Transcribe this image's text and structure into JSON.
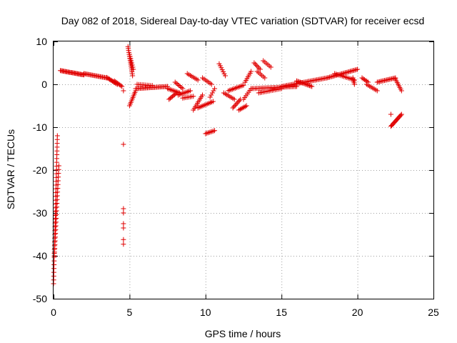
{
  "chart_data": {
    "type": "scatter",
    "title": "Day 082 of 2018, Sidereal Day-to-day VTEC variation (SDTVAR) for receiver ecsd",
    "xlabel": "GPS time / hours",
    "ylabel": "SDTVAR / TECUs",
    "xlim": [
      0,
      25
    ],
    "ylim": [
      -50,
      10
    ],
    "xticks": [
      0,
      5,
      10,
      15,
      20,
      25
    ],
    "yticks": [
      10,
      0,
      -10,
      -20,
      -30,
      -40,
      -50
    ],
    "xtick_labels": [
      "0",
      "5",
      "10",
      "15",
      "20",
      "25"
    ],
    "ytick_labels": [
      "10",
      "0",
      "-10",
      "-20",
      "-30",
      "-40",
      "-50"
    ],
    "grid": true,
    "marker": "+",
    "color": "#e00000",
    "series": [
      {
        "name": "SDTVAR",
        "segments": [
          {
            "x0": 0.0,
            "y0": -46.5,
            "x1": 0.25,
            "y1": -12.0,
            "n": 40
          },
          {
            "x0": 0.05,
            "y0": -40.0,
            "x1": 0.35,
            "y1": -19.0,
            "n": 25
          },
          {
            "x0": 0.45,
            "y0": 3.2,
            "x1": 2.0,
            "y1": 2.2,
            "n": 26
          },
          {
            "x0": 2.0,
            "y0": 2.5,
            "x1": 3.5,
            "y1": 1.5,
            "n": 22
          },
          {
            "x0": 3.5,
            "y0": 1.6,
            "x1": 4.2,
            "y1": 0.0,
            "n": 12
          },
          {
            "x0": 4.0,
            "y0": 0.8,
            "x1": 4.5,
            "y1": -0.5,
            "n": 8
          },
          {
            "x0": 4.9,
            "y0": 8.8,
            "x1": 5.2,
            "y1": 2.0,
            "n": 16
          },
          {
            "x0": 5.0,
            "y0": 7.0,
            "x1": 5.25,
            "y1": 3.5,
            "n": 8
          },
          {
            "x0": 5.0,
            "y0": -5.0,
            "x1": 5.4,
            "y1": -1.5,
            "n": 10
          },
          {
            "x0": 5.4,
            "y0": -1.0,
            "x1": 7.5,
            "y1": -0.5,
            "n": 28
          },
          {
            "x0": 5.5,
            "y0": 0.0,
            "x1": 6.5,
            "y1": -0.3,
            "n": 10
          },
          {
            "x0": 7.5,
            "y0": -1.0,
            "x1": 8.3,
            "y1": -2.0,
            "n": 10
          },
          {
            "x0": 7.6,
            "y0": -3.5,
            "x1": 8.1,
            "y1": -2.0,
            "n": 8
          },
          {
            "x0": 8.0,
            "y0": 0.5,
            "x1": 8.5,
            "y1": -1.0,
            "n": 7
          },
          {
            "x0": 8.2,
            "y0": -2.5,
            "x1": 9.0,
            "y1": -1.5,
            "n": 10
          },
          {
            "x0": 8.5,
            "y0": -3.2,
            "x1": 9.2,
            "y1": -2.8,
            "n": 8
          },
          {
            "x0": 8.8,
            "y0": 2.5,
            "x1": 9.5,
            "y1": 1.0,
            "n": 8
          },
          {
            "x0": 9.2,
            "y0": -6.0,
            "x1": 9.8,
            "y1": -2.5,
            "n": 10
          },
          {
            "x0": 9.5,
            "y0": -5.5,
            "x1": 10.5,
            "y1": -4.0,
            "n": 12
          },
          {
            "x0": 9.8,
            "y0": 1.5,
            "x1": 10.4,
            "y1": 0.0,
            "n": 7
          },
          {
            "x0": 10.0,
            "y0": -11.5,
            "x1": 10.6,
            "y1": -10.8,
            "n": 8
          },
          {
            "x0": 10.3,
            "y0": -3.0,
            "x1": 10.6,
            "y1": -1.0,
            "n": 5
          },
          {
            "x0": 10.9,
            "y0": 4.8,
            "x1": 11.3,
            "y1": 2.0,
            "n": 7
          },
          {
            "x0": 11.2,
            "y0": -2.0,
            "x1": 11.9,
            "y1": -3.5,
            "n": 8
          },
          {
            "x0": 11.5,
            "y0": -1.5,
            "x1": 12.5,
            "y1": -0.2,
            "n": 12
          },
          {
            "x0": 11.8,
            "y0": -5.5,
            "x1": 12.3,
            "y1": -3.5,
            "n": 8
          },
          {
            "x0": 12.2,
            "y0": -6.0,
            "x1": 12.7,
            "y1": -5.0,
            "n": 7
          },
          {
            "x0": 12.5,
            "y0": -3.5,
            "x1": 13.0,
            "y1": -1.0,
            "n": 7
          },
          {
            "x0": 12.6,
            "y0": 0.5,
            "x1": 13.0,
            "y1": 3.0,
            "n": 7
          },
          {
            "x0": 13.2,
            "y0": 5.0,
            "x1": 13.6,
            "y1": 3.5,
            "n": 6
          },
          {
            "x0": 13.4,
            "y0": 3.0,
            "x1": 13.9,
            "y1": 1.5,
            "n": 6
          },
          {
            "x0": 13.8,
            "y0": 5.5,
            "x1": 14.3,
            "y1": 4.0,
            "n": 6
          },
          {
            "x0": 13.0,
            "y0": -1.0,
            "x1": 16.0,
            "y1": -0.5,
            "n": 34
          },
          {
            "x0": 13.5,
            "y0": -2.0,
            "x1": 15.0,
            "y1": -1.0,
            "n": 16
          },
          {
            "x0": 15.0,
            "y0": -0.5,
            "x1": 18.0,
            "y1": 1.5,
            "n": 36
          },
          {
            "x0": 16.0,
            "y0": 0.8,
            "x1": 17.0,
            "y1": -0.5,
            "n": 14
          },
          {
            "x0": 18.0,
            "y0": 1.5,
            "x1": 20.0,
            "y1": 3.5,
            "n": 26
          },
          {
            "x0": 18.5,
            "y0": 2.5,
            "x1": 19.8,
            "y1": 1.0,
            "n": 14
          },
          {
            "x0": 19.7,
            "y0": 1.5,
            "x1": 19.8,
            "y1": 0.0,
            "n": 5
          },
          {
            "x0": 20.3,
            "y0": 1.5,
            "x1": 20.7,
            "y1": 0.5,
            "n": 6
          },
          {
            "x0": 20.6,
            "y0": 0.0,
            "x1": 21.3,
            "y1": -1.5,
            "n": 8
          },
          {
            "x0": 21.3,
            "y0": 0.5,
            "x1": 22.5,
            "y1": 1.5,
            "n": 16
          },
          {
            "x0": 22.5,
            "y0": 1.2,
            "x1": 22.9,
            "y1": -1.5,
            "n": 8
          },
          {
            "x0": 22.2,
            "y0": -9.8,
            "x1": 22.9,
            "y1": -7.0,
            "n": 14
          }
        ],
        "points": [
          {
            "x": 4.6,
            "y": -14.0
          },
          {
            "x": 4.6,
            "y": -29.0
          },
          {
            "x": 4.6,
            "y": -30.0
          },
          {
            "x": 4.6,
            "y": -32.5
          },
          {
            "x": 4.6,
            "y": -33.5
          },
          {
            "x": 4.6,
            "y": -36.2
          },
          {
            "x": 4.6,
            "y": -37.3
          },
          {
            "x": 4.6,
            "y": -1.5
          },
          {
            "x": 22.2,
            "y": -7.0
          }
        ]
      }
    ]
  }
}
